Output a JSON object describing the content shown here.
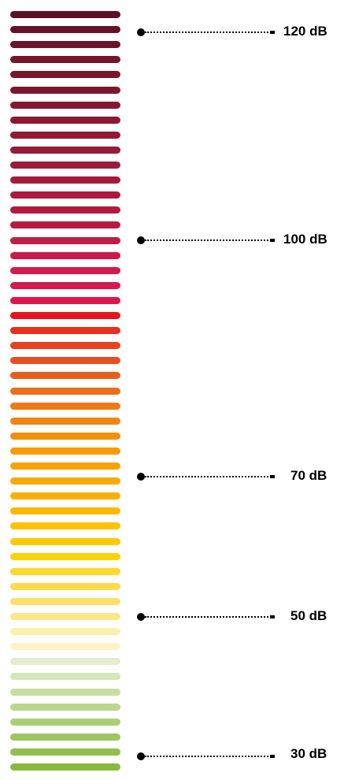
{
  "meter": {
    "bar_colors": [
      "#5c1126",
      "#661229",
      "#6b132a",
      "#74152c",
      "#7a162e",
      "#7f1630",
      "#861732",
      "#8c1834",
      "#931836",
      "#991939",
      "#9e1a3a",
      "#a51a3d",
      "#ac1a3f",
      "#b21a42",
      "#b91a44",
      "#c01b48",
      "#c81b4b",
      "#d01b4e",
      "#d71a50",
      "#e1154d",
      "#e8141f",
      "#e6301f",
      "#e64220",
      "#e65020",
      "#e75f1c",
      "#eb6e18",
      "#ef7a14",
      "#f1850f",
      "#f48f0c",
      "#f69a09",
      "#f7a207",
      "#f8aa06",
      "#f9b004",
      "#fbb903",
      "#fcc303",
      "#fdc902",
      "#fed203",
      "#fdd62e",
      "#fdda4c",
      "#fde06a",
      "#fde787",
      "#fdeeaa",
      "#fdf3c3",
      "#e4edcc",
      "#d5e6b9",
      "#c7dda2",
      "#b9d68b",
      "#aace76",
      "#9dc65f",
      "#91c04b",
      "#86ba3a"
    ]
  },
  "markers": [
    {
      "label": "120 dB"
    },
    {
      "label": "100 dB"
    },
    {
      "label": "70 dB"
    },
    {
      "label": "50 dB"
    },
    {
      "label": "30 dB"
    }
  ]
}
